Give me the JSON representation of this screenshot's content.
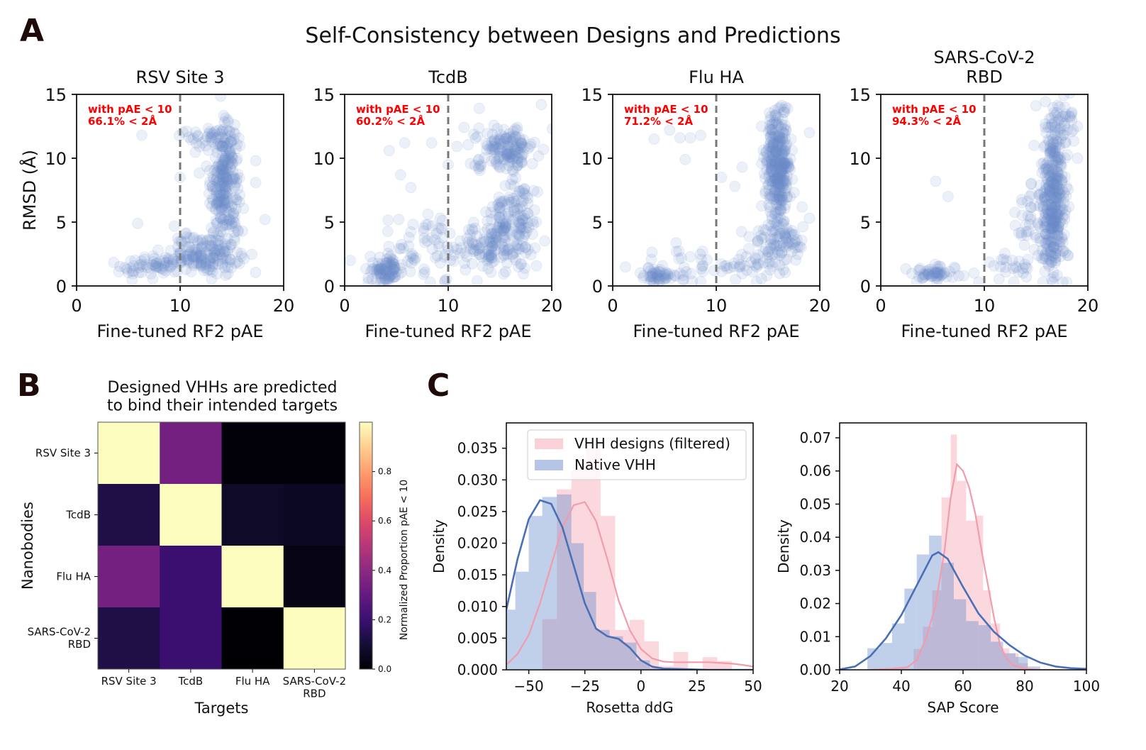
{
  "figure": {
    "panel_letters": [
      "A",
      "B",
      "C"
    ],
    "suptitle": "Self-Consistency between Designs and Predictions"
  },
  "chart_data": [
    {
      "type": "scatter",
      "panel": "A",
      "title": "RSV Site 3",
      "xlabel": "Fine-tuned RF2 pAE",
      "ylabel": "RMSD (Å)",
      "xlim": [
        0,
        20
      ],
      "ylim": [
        0,
        15
      ],
      "xticks": [
        "0",
        "10",
        "20"
      ],
      "yticks": [
        "0",
        "5",
        "10",
        "15"
      ],
      "threshold_x": 10,
      "annotation": [
        "with pAE < 10",
        "66.1% < 2Å"
      ],
      "color": "#6a8ccc",
      "clusters": [
        {
          "cx": 14.3,
          "cy": 8.0,
          "sx": 0.7,
          "sy": 2.3,
          "n": 260
        },
        {
          "cx": 12.5,
          "cy": 2.5,
          "sx": 1.6,
          "sy": 0.8,
          "n": 150
        },
        {
          "cx": 7.5,
          "cy": 1.6,
          "sx": 2.0,
          "sy": 0.5,
          "n": 70
        },
        {
          "cx": 13.0,
          "cy": 11.8,
          "sx": 1.3,
          "sy": 0.6,
          "n": 40
        }
      ],
      "outliers": [
        [
          6.3,
          11.8
        ],
        [
          17.3,
          9.8
        ],
        [
          17.3,
          8.1
        ],
        [
          18.2,
          5.2
        ],
        [
          10.0,
          8.5
        ],
        [
          5.9,
          4.9
        ]
      ]
    },
    {
      "type": "scatter",
      "panel": "A",
      "title": "TcdB",
      "xlabel": "Fine-tuned RF2 pAE",
      "ylabel": "",
      "xlim": [
        0,
        20
      ],
      "ylim": [
        0,
        15
      ],
      "xticks": [
        "0",
        "10",
        "20"
      ],
      "yticks": [
        "0",
        "5",
        "10",
        "15"
      ],
      "threshold_x": 10,
      "annotation": [
        "with pAE < 10",
        "60.2% < 2Å"
      ],
      "color": "#6a8ccc",
      "clusters": [
        {
          "cx": 4.0,
          "cy": 1.2,
          "sx": 0.8,
          "sy": 0.5,
          "n": 90
        },
        {
          "cx": 15.5,
          "cy": 10.8,
          "sx": 1.5,
          "sy": 0.9,
          "n": 150
        },
        {
          "cx": 16.0,
          "cy": 5.5,
          "sx": 1.2,
          "sy": 1.2,
          "n": 110
        },
        {
          "cx": 15.0,
          "cy": 3.0,
          "sx": 1.8,
          "sy": 0.9,
          "n": 110
        },
        {
          "cx": 9.0,
          "cy": 3.0,
          "sx": 3.0,
          "sy": 1.5,
          "n": 90
        }
      ],
      "outliers": [
        [
          4.3,
          10.6
        ],
        [
          5.8,
          11.2
        ],
        [
          8.4,
          11.2
        ],
        [
          5.4,
          8.7
        ],
        [
          6.4,
          7.7
        ],
        [
          13.0,
          13.9
        ],
        [
          19.0,
          14.2
        ],
        [
          10.0,
          9.5
        ],
        [
          12.8,
          0.4
        ]
      ]
    },
    {
      "type": "scatter",
      "panel": "A",
      "title": "Flu HA",
      "xlabel": "Fine-tuned RF2 pAE",
      "ylabel": "",
      "xlim": [
        0,
        20
      ],
      "ylim": [
        0,
        15
      ],
      "xticks": [
        "0",
        "10",
        "20"
      ],
      "yticks": [
        "0",
        "5",
        "10",
        "15"
      ],
      "threshold_x": 10,
      "annotation": [
        "with pAE < 10",
        "71.2% < 2Å"
      ],
      "color": "#6a8ccc",
      "clusters": [
        {
          "cx": 16.0,
          "cy": 9.5,
          "sx": 0.6,
          "sy": 2.2,
          "n": 320
        },
        {
          "cx": 16.0,
          "cy": 3.5,
          "sx": 1.3,
          "sy": 1.1,
          "n": 100
        },
        {
          "cx": 4.2,
          "cy": 0.8,
          "sx": 0.6,
          "sy": 0.3,
          "n": 40
        },
        {
          "cx": 6.5,
          "cy": 1.4,
          "sx": 1.8,
          "sy": 0.6,
          "n": 35
        },
        {
          "cx": 12.5,
          "cy": 1.5,
          "sx": 1.5,
          "sy": 0.6,
          "n": 30
        }
      ],
      "outliers": [
        [
          4.0,
          11.5
        ],
        [
          5.5,
          12.2
        ],
        [
          6.5,
          11.6
        ],
        [
          7.5,
          11.6
        ],
        [
          8.5,
          11.8
        ],
        [
          7.0,
          9.9
        ],
        [
          10.5,
          8.5
        ],
        [
          12.5,
          9.3
        ],
        [
          11.8,
          7.8
        ],
        [
          19.0,
          5.3
        ],
        [
          19.0,
          12.0
        ]
      ]
    },
    {
      "type": "scatter",
      "panel": "A",
      "title": "SARS-CoV-2\nRBD",
      "xlabel": "Fine-tuned RF2 pAE",
      "ylabel": "",
      "xlim": [
        0,
        20
      ],
      "ylim": [
        0,
        15
      ],
      "xticks": [
        "0",
        "10",
        "20"
      ],
      "yticks": [
        "0",
        "5",
        "10",
        "15"
      ],
      "threshold_x": 10,
      "annotation": [
        "with pAE < 10",
        "94.3% < 2Å"
      ],
      "color": "#6a8ccc",
      "clusters": [
        {
          "cx": 16.7,
          "cy": 7.0,
          "sx": 0.6,
          "sy": 3.3,
          "n": 340
        },
        {
          "cx": 15.0,
          "cy": 4.5,
          "sx": 1.1,
          "sy": 1.7,
          "n": 60
        },
        {
          "cx": 5.0,
          "cy": 1.0,
          "sx": 1.1,
          "sy": 0.35,
          "n": 55
        },
        {
          "cx": 12.5,
          "cy": 1.8,
          "sx": 1.6,
          "sy": 0.8,
          "n": 25
        },
        {
          "cx": 17.5,
          "cy": 12.5,
          "sx": 0.8,
          "sy": 1.3,
          "n": 40
        }
      ],
      "outliers": [
        [
          5.3,
          8.2
        ],
        [
          6.5,
          7.0
        ],
        [
          14.8,
          11.0
        ],
        [
          19.0,
          12.5
        ],
        [
          19.0,
          10.0
        ],
        [
          8.0,
          0.8
        ],
        [
          9.0,
          1.0
        ]
      ]
    },
    {
      "type": "heatmap",
      "panel": "B",
      "title": "Designed VHHs are predicted\nto bind their intended targets",
      "xlabel": "Targets",
      "ylabel": "Nanobodies",
      "x_categories": [
        "RSV Site 3",
        "TcdB",
        "Flu HA",
        "SARS-CoV-2\nRBD"
      ],
      "y_categories": [
        "RSV Site 3",
        "TcdB",
        "Flu HA",
        "SARS-CoV-2\nRBD"
      ],
      "values": [
        [
          1.0,
          0.34,
          0.01,
          0.01
        ],
        [
          0.13,
          1.0,
          0.07,
          0.06
        ],
        [
          0.34,
          0.2,
          1.0,
          0.03
        ],
        [
          0.13,
          0.2,
          0.0,
          1.0
        ]
      ],
      "colormap": "magma",
      "colorbar": {
        "label": "Normalized Proportion pAE < 10",
        "range": [
          0,
          1
        ],
        "ticks": [
          "0.0",
          "0.2",
          "0.4",
          "0.6",
          "0.8"
        ]
      }
    },
    {
      "type": "histogram",
      "panel": "C",
      "xlabel": "Rosetta ddG",
      "ylabel": "Density",
      "xlim": [
        -60,
        50
      ],
      "ylim": [
        0,
        0.039
      ],
      "xticks": [
        "−50",
        "−25",
        "0",
        "25",
        "50"
      ],
      "yticks": [
        "0.000",
        "0.005",
        "0.010",
        "0.015",
        "0.020",
        "0.025",
        "0.030",
        "0.035"
      ],
      "legend": {
        "position": "top-right",
        "entries": [
          "VHH designs (filtered)",
          "Native VHH"
        ]
      },
      "series": [
        {
          "name": "VHH designs (filtered)",
          "color": "#f5a3b1",
          "bin_edges": [
            -44,
            -37.5,
            -31,
            -24.5,
            -18,
            -11.5,
            -5,
            1.5,
            8,
            14.5,
            21,
            27.5,
            34,
            40.5,
            47
          ],
          "heights": [
            0.008,
            0.0285,
            0.0315,
            0.035,
            0.0243,
            0.0063,
            0.0079,
            0.0045,
            0.0006,
            0.0028,
            0.0001,
            0.002,
            0.0014,
            0.0
          ],
          "kde_x": [
            -60,
            -55,
            -50,
            -45,
            -40,
            -35,
            -30,
            -25,
            -20,
            -15,
            -10,
            -5,
            0,
            5,
            10,
            15,
            20,
            25,
            30,
            35,
            40,
            45,
            50
          ],
          "kde_y": [
            0.0008,
            0.0025,
            0.0055,
            0.0105,
            0.0165,
            0.0225,
            0.026,
            0.0265,
            0.0235,
            0.0175,
            0.011,
            0.0063,
            0.0033,
            0.0018,
            0.0013,
            0.0012,
            0.0012,
            0.0012,
            0.0012,
            0.0011,
            0.001,
            0.0008,
            0.0005
          ]
        },
        {
          "name": "Native VHH",
          "color": "#6a8ccc",
          "bin_edges": [
            -60,
            -56,
            -50,
            -44,
            -37.5,
            -31,
            -25.5,
            -20,
            -14,
            -8,
            -2,
            4,
            10
          ],
          "heights": [
            0.0095,
            0.0155,
            0.0243,
            0.0273,
            0.0277,
            0.02,
            0.0123,
            0.0063,
            0.0053,
            0.0043,
            0.0015,
            0.0003
          ],
          "kde_x": [
            -60,
            -55,
            -50,
            -45,
            -40,
            -35,
            -30,
            -25,
            -20,
            -15,
            -10,
            -5,
            0,
            5,
            10,
            20,
            30,
            40,
            50
          ],
          "kde_y": [
            0.0095,
            0.0175,
            0.0238,
            0.0268,
            0.0262,
            0.0225,
            0.0165,
            0.0105,
            0.0065,
            0.0053,
            0.0049,
            0.0035,
            0.0015,
            0.0005,
            0.0002,
            0.0001,
            0.0,
            0.0,
            0.0
          ]
        }
      ]
    },
    {
      "type": "histogram",
      "panel": "C",
      "xlabel": "SAP Score",
      "ylabel": "Density",
      "xlim": [
        20,
        100
      ],
      "ylim": [
        0,
        0.0745
      ],
      "xticks": [
        "20",
        "40",
        "60",
        "80",
        "100"
      ],
      "yticks": [
        "0.00",
        "0.01",
        "0.02",
        "0.03",
        "0.04",
        "0.05",
        "0.06",
        "0.07"
      ],
      "series": [
        {
          "name": "VHH designs (filtered)",
          "color": "#f5a3b1",
          "bin_edges": [
            38,
            41,
            44,
            47,
            50,
            53,
            56,
            58,
            61,
            64,
            66.5,
            69,
            72,
            75,
            78,
            81
          ],
          "heights": [
            0.0007,
            0.0004,
            0.0063,
            0.013,
            0.024,
            0.052,
            0.071,
            0.057,
            0.045,
            0.0465,
            0.024,
            0.014,
            0.0065,
            0.005,
            0.002
          ],
          "kde_x": [
            30,
            38,
            42,
            45,
            48,
            51,
            54,
            56,
            58,
            60,
            62,
            64,
            66,
            68,
            70,
            72,
            74,
            76,
            80,
            85,
            90
          ],
          "kde_y": [
            0.0,
            0.0004,
            0.0008,
            0.003,
            0.0095,
            0.019,
            0.036,
            0.052,
            0.062,
            0.06,
            0.055,
            0.047,
            0.036,
            0.026,
            0.016,
            0.0075,
            0.0035,
            0.0015,
            0.0003,
            0.0,
            0.0
          ]
        },
        {
          "name": "Native VHH",
          "color": "#6a8ccc",
          "bin_edges": [
            29,
            33,
            37,
            41,
            45,
            49,
            53,
            57,
            61,
            65,
            69,
            73,
            77,
            81,
            85
          ],
          "heights": [
            0.0065,
            0.0081,
            0.014,
            0.0245,
            0.0348,
            0.0405,
            0.0323,
            0.0213,
            0.0147,
            0.0135,
            0.0085,
            0.005,
            0.0039,
            0.001
          ],
          "kde_x": [
            20,
            25,
            30,
            35,
            40,
            45,
            50,
            52,
            55,
            60,
            65,
            70,
            75,
            80,
            85,
            90,
            95,
            100
          ],
          "kde_y": [
            0.0001,
            0.001,
            0.0042,
            0.0095,
            0.0165,
            0.0255,
            0.0345,
            0.0355,
            0.0335,
            0.025,
            0.017,
            0.0115,
            0.0075,
            0.0043,
            0.0022,
            0.001,
            0.0005,
            0.0003
          ]
        }
      ]
    }
  ]
}
